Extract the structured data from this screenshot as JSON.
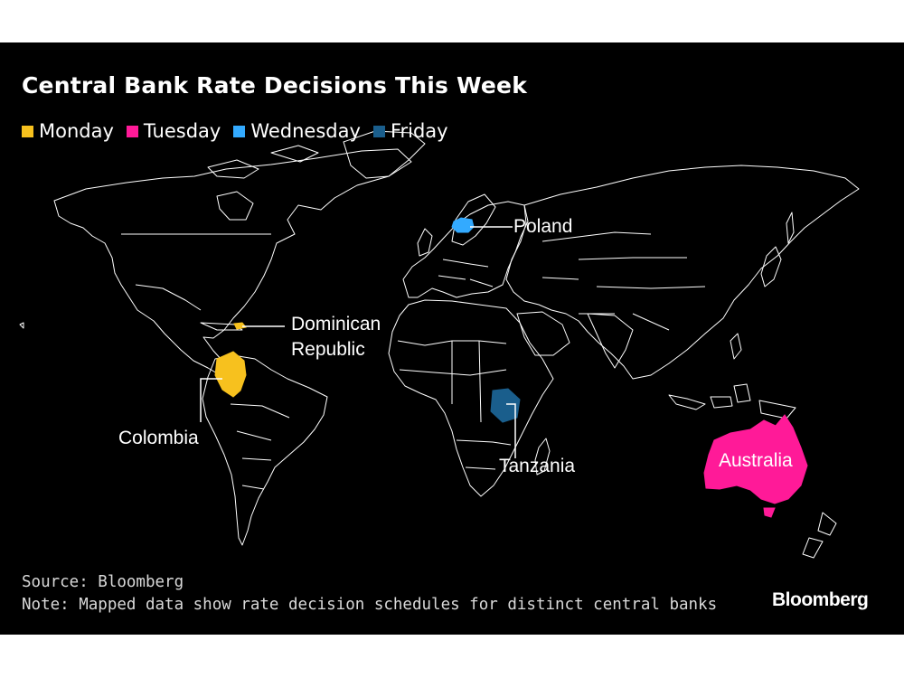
{
  "title": "Central Bank Rate Decisions This Week",
  "legend": [
    {
      "label": "Monday",
      "color": "#f7c11e"
    },
    {
      "label": "Tuesday",
      "color": "#ff1a98"
    },
    {
      "label": "Wednesday",
      "color": "#33aaff"
    },
    {
      "label": "Friday",
      "color": "#1a5e8c"
    }
  ],
  "countries": [
    {
      "name": "Poland",
      "day": "Wednesday",
      "color": "#33aaff"
    },
    {
      "name": "Dominican Republic",
      "day": "Monday",
      "color": "#f7c11e",
      "label_lines": [
        "Dominican",
        "Republic"
      ]
    },
    {
      "name": "Colombia",
      "day": "Monday",
      "color": "#f7c11e"
    },
    {
      "name": "Tanzania",
      "day": "Friday",
      "color": "#1a5e8c"
    },
    {
      "name": "Australia",
      "day": "Tuesday",
      "color": "#ff1a98"
    }
  ],
  "source": "Source: Bloomberg",
  "note": "Note: Mapped data show rate decision schedules for distinct central banks",
  "logo": "Bloomberg"
}
